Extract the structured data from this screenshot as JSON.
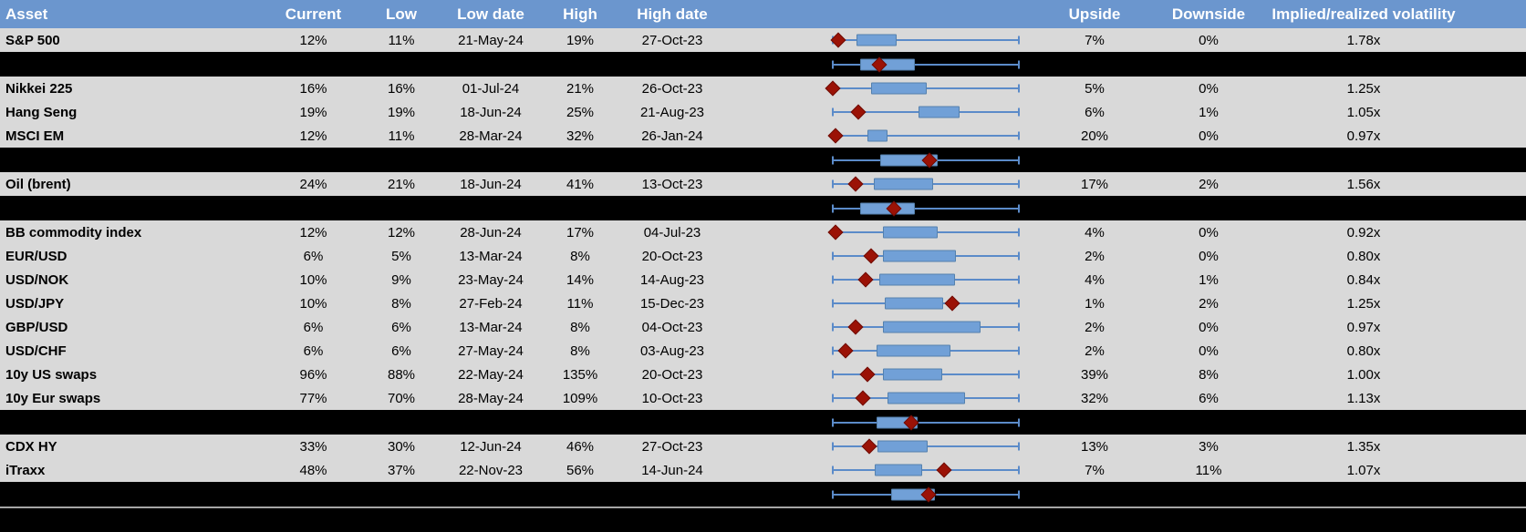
{
  "header": {
    "asset": "Asset",
    "current": "Current",
    "low": "Low",
    "low_date": "Low date",
    "high": "High",
    "high_date": "High date",
    "chart": "",
    "upside": "Upside",
    "downside": "Downside",
    "implied_realized": "Implied/realized volatility"
  },
  "colors": {
    "header_bg": "#6b96ce",
    "header_text": "#ffffff",
    "row_bg": "#d9d9d9",
    "separator_bg": "#000000",
    "body_text": "#000000",
    "whisker_blue": "#5b8bc9",
    "box_fill": "#71a0d7",
    "box_border": "#5581ad",
    "diamond_red": "#9b1206",
    "bottom_line_gray": "#a6a6a6"
  },
  "chart_data": {
    "type": "table",
    "columns": [
      "Asset",
      "Current",
      "Low",
      "Low date",
      "High",
      "High date",
      "",
      "Upside",
      "Downside",
      "Implied/realized volatility"
    ],
    "boxplot_legend": {
      "marker": "diamond = current level",
      "scale": "each row box-whisker normalized 0-100 across its own low-high range",
      "whisker_left_pct": 0,
      "whisker_right_pct": 100
    },
    "rows": [
      {
        "type": "asset",
        "asset": "S&P 500",
        "current": "12%",
        "low": "11%",
        "low_date": "21-May-24",
        "high": "19%",
        "high_date": "27-Oct-23",
        "upside": "7%",
        "downside": "0%",
        "implied_realized": "1.78x",
        "boxplot": {
          "box_left_pct": 12.7,
          "box_right_pct": 34.3,
          "diamond_pct": 2.9
        }
      },
      {
        "type": "summary",
        "boxplot": {
          "box_left_pct": 14.7,
          "box_right_pct": 44.1,
          "diamond_pct": 25.0
        }
      },
      {
        "type": "asset",
        "asset": "Nikkei 225",
        "current": "16%",
        "low": "16%",
        "low_date": "01-Jul-24",
        "high": "21%",
        "high_date": "26-Oct-23",
        "upside": "5%",
        "downside": "0%",
        "implied_realized": "1.25x",
        "boxplot": {
          "box_left_pct": 20.6,
          "box_right_pct": 50.5,
          "diamond_pct": 0
        }
      },
      {
        "type": "asset",
        "asset": "Hang Seng",
        "current": "19%",
        "low": "19%",
        "low_date": "18-Jun-24",
        "high": "25%",
        "high_date": "21-Aug-23",
        "upside": "6%",
        "downside": "1%",
        "implied_realized": "1.05x",
        "boxplot": {
          "box_left_pct": 46.1,
          "box_right_pct": 68.1,
          "diamond_pct": 13.7
        }
      },
      {
        "type": "asset",
        "asset": "MSCI EM",
        "current": "12%",
        "low": "11%",
        "low_date": "28-Mar-24",
        "high": "32%",
        "high_date": "26-Jan-24",
        "upside": "20%",
        "downside": "0%",
        "implied_realized": "0.97x",
        "boxplot": {
          "box_left_pct": 18.6,
          "box_right_pct": 29.4,
          "diamond_pct": 1.5
        }
      },
      {
        "type": "summary",
        "boxplot": {
          "box_left_pct": 25.5,
          "box_right_pct": 56.4,
          "diamond_pct": 52.0
        }
      },
      {
        "type": "asset",
        "asset": "Oil (brent)",
        "current": "24%",
        "low": "21%",
        "low_date": "18-Jun-24",
        "high": "41%",
        "high_date": "13-Oct-23",
        "upside": "17%",
        "downside": "2%",
        "implied_realized": "1.56x",
        "boxplot": {
          "box_left_pct": 22.1,
          "box_right_pct": 53.9,
          "diamond_pct": 12.3
        }
      },
      {
        "type": "summary",
        "boxplot": {
          "box_left_pct": 14.7,
          "box_right_pct": 44.1,
          "diamond_pct": 32.8
        }
      },
      {
        "type": "asset",
        "asset": "BB commodity index",
        "current": "12%",
        "low": "12%",
        "low_date": "28-Jun-24",
        "high": "17%",
        "high_date": "04-Jul-23",
        "upside": "4%",
        "downside": "0%",
        "implied_realized": "0.92x",
        "boxplot": {
          "box_left_pct": 27.0,
          "box_right_pct": 56.4,
          "diamond_pct": 1.5
        }
      },
      {
        "type": "asset",
        "asset": "EUR/USD",
        "current": "6%",
        "low": "5%",
        "low_date": "13-Mar-24",
        "high": "8%",
        "high_date": "20-Oct-23",
        "upside": "2%",
        "downside": "0%",
        "implied_realized": "0.80x",
        "boxplot": {
          "box_left_pct": 27.0,
          "box_right_pct": 66.2,
          "diamond_pct": 20.6
        }
      },
      {
        "type": "asset",
        "asset": "USD/NOK",
        "current": "10%",
        "low": "9%",
        "low_date": "23-May-24",
        "high": "14%",
        "high_date": "14-Aug-23",
        "upside": "4%",
        "downside": "1%",
        "implied_realized": "0.84x",
        "boxplot": {
          "box_left_pct": 25.0,
          "box_right_pct": 65.7,
          "diamond_pct": 17.6
        }
      },
      {
        "type": "asset",
        "asset": "USD/JPY",
        "current": "10%",
        "low": "8%",
        "low_date": "27-Feb-24",
        "high": "11%",
        "high_date": "15-Dec-23",
        "upside": "1%",
        "downside": "2%",
        "implied_realized": "1.25x",
        "boxplot": {
          "box_left_pct": 27.9,
          "box_right_pct": 59.3,
          "diamond_pct": 64.2
        }
      },
      {
        "type": "asset",
        "asset": "GBP/USD",
        "current": "6%",
        "low": "6%",
        "low_date": "13-Mar-24",
        "high": "8%",
        "high_date": "04-Oct-23",
        "upside": "2%",
        "downside": "0%",
        "implied_realized": "0.97x",
        "boxplot": {
          "box_left_pct": 27.0,
          "box_right_pct": 79.4,
          "diamond_pct": 12.3
        }
      },
      {
        "type": "asset",
        "asset": "USD/CHF",
        "current": "6%",
        "low": "6%",
        "low_date": "27-May-24",
        "high": "8%",
        "high_date": "03-Aug-23",
        "upside": "2%",
        "downside": "0%",
        "implied_realized": "0.80x",
        "boxplot": {
          "box_left_pct": 23.5,
          "box_right_pct": 63.2,
          "diamond_pct": 6.9
        }
      },
      {
        "type": "asset",
        "asset": "10y US swaps",
        "current": "96%",
        "low": "88%",
        "low_date": "22-May-24",
        "high": "135%",
        "high_date": "20-Oct-23",
        "upside": "39%",
        "downside": "8%",
        "implied_realized": "1.00x",
        "boxplot": {
          "box_left_pct": 27.0,
          "box_right_pct": 58.8,
          "diamond_pct": 18.6
        }
      },
      {
        "type": "asset",
        "asset": "10y Eur swaps",
        "current": "77%",
        "low": "70%",
        "low_date": "28-May-24",
        "high": "109%",
        "high_date": "10-Oct-23",
        "upside": "32%",
        "downside": "6%",
        "implied_realized": "1.13x",
        "boxplot": {
          "box_left_pct": 29.4,
          "box_right_pct": 71.1,
          "diamond_pct": 16.2
        }
      },
      {
        "type": "summary",
        "boxplot": {
          "box_left_pct": 23.5,
          "box_right_pct": 45.6,
          "diamond_pct": 42.2
        }
      },
      {
        "type": "asset",
        "asset": "CDX HY",
        "current": "33%",
        "low": "30%",
        "low_date": "12-Jun-24",
        "high": "46%",
        "high_date": "27-Oct-23",
        "upside": "13%",
        "downside": "3%",
        "implied_realized": "1.35x",
        "boxplot": {
          "box_left_pct": 24.0,
          "box_right_pct": 51.0,
          "diamond_pct": 19.6
        }
      },
      {
        "type": "asset",
        "asset": "iTraxx",
        "current": "48%",
        "low": "37%",
        "low_date": "22-Nov-23",
        "high": "56%",
        "high_date": "14-Jun-24",
        "upside": "7%",
        "downside": "11%",
        "implied_realized": "1.07x",
        "boxplot": {
          "box_left_pct": 22.5,
          "box_right_pct": 48.0,
          "diamond_pct": 59.8
        }
      },
      {
        "type": "summary",
        "boxplot": {
          "box_left_pct": 31.4,
          "box_right_pct": 54.9,
          "diamond_pct": 51.5
        }
      }
    ]
  }
}
